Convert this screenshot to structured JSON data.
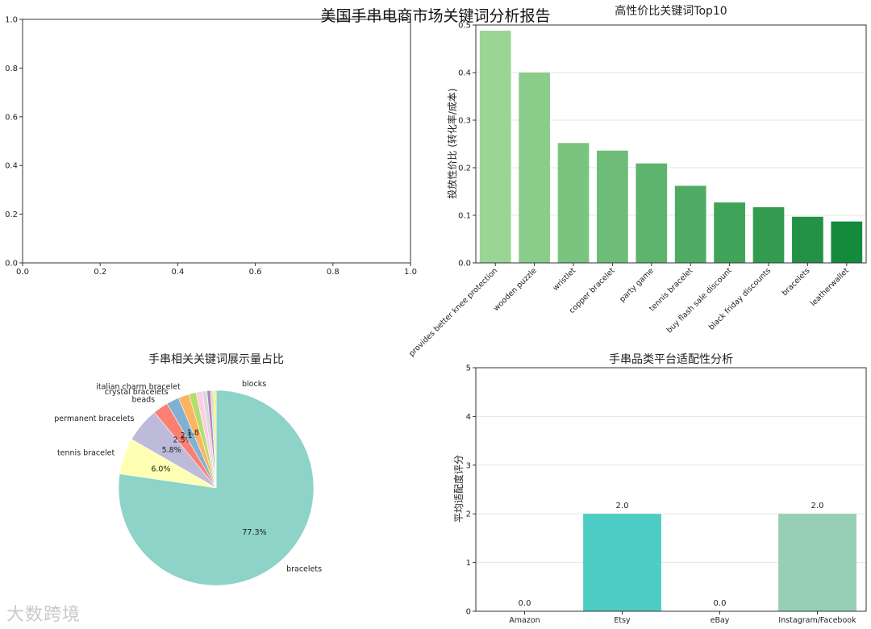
{
  "suptitle": "美国手串电商市场关键词分析报告",
  "watermark": "大数跨境",
  "colors": {
    "axis": "#333333",
    "grid": "#e6e6e6",
    "green_light": "#99d594",
    "green_dark": "#148a3c",
    "platform_colors": [
      "#f4b6b6",
      "#4ecdc4",
      "#cfe8f3",
      "#96cfb4"
    ]
  },
  "chart_data": [
    {
      "id": "empty",
      "type": "scatter",
      "title": "",
      "xlim": [
        0,
        1
      ],
      "ylim": [
        0,
        1
      ],
      "xticks": [
        "0.0",
        "0.2",
        "0.4",
        "0.6",
        "0.8",
        "1.0"
      ],
      "yticks": [
        "0.0",
        "0.2",
        "0.4",
        "0.6",
        "0.8",
        "1.0"
      ],
      "grid": false,
      "series": []
    },
    {
      "id": "top10",
      "type": "bar",
      "title": "高性价比关键词Top10",
      "ylabel": "投放性价比 (转化率/成本)",
      "xlabel": "",
      "ylim": [
        0,
        0.5
      ],
      "yticks": [
        "0.0",
        "0.1",
        "0.2",
        "0.3",
        "0.4",
        "0.5"
      ],
      "grid": true,
      "categories": [
        "provides better knee protection",
        "wooden puzzle",
        "wristlet",
        "copper bracelet",
        "party game",
        "tennis bracelet",
        "buy flash sale discount",
        "black friday discounts",
        "bracelets",
        "leatherwallet"
      ],
      "values": [
        0.488,
        0.4,
        0.252,
        0.236,
        0.209,
        0.162,
        0.127,
        0.117,
        0.097,
        0.087
      ]
    },
    {
      "id": "pie",
      "type": "pie",
      "title": "手串相关关键词展示量占比",
      "slices": [
        {
          "label": "bracelets",
          "value": 77.3,
          "pct": "77.3%",
          "color": "#8dd3c7"
        },
        {
          "label": "tennis bracelet",
          "value": 6.0,
          "pct": "6.0%",
          "color": "#ffffb3"
        },
        {
          "label": "permanent bracelets",
          "value": 5.8,
          "pct": "5.8%",
          "color": "#bebada"
        },
        {
          "label": "beads",
          "value": 2.5,
          "pct": "2.5%",
          "color": "#fb8072"
        },
        {
          "label": "crystal bracelets",
          "value": 2.1,
          "pct": "2.1%",
          "color": "#80b1d3"
        },
        {
          "label": "italian charm bracelet",
          "value": 1.8,
          "pct": "1.8%",
          "color": "#fdb462"
        },
        {
          "label": "",
          "value": 1.2,
          "pct": "",
          "color": "#b3de69"
        },
        {
          "label": "",
          "value": 1.0,
          "pct": "",
          "color": "#fccde5"
        },
        {
          "label": "",
          "value": 0.8,
          "pct": "",
          "color": "#d9d9d9"
        },
        {
          "label": "",
          "value": 0.6,
          "pct": "",
          "color": "#bc80bd"
        },
        {
          "label": "",
          "value": 0.5,
          "pct": "",
          "color": "#ccebc5"
        },
        {
          "label": "",
          "value": 0.4,
          "pct": "",
          "color": "#ffed6f"
        }
      ],
      "overlap_label": "blocks"
    },
    {
      "id": "platform",
      "type": "bar",
      "title": "手串品类平台适配性分析",
      "ylabel": "平均适配度评分",
      "xlabel": "",
      "ylim": [
        0,
        5
      ],
      "yticks": [
        "0",
        "1",
        "2",
        "3",
        "4",
        "5"
      ],
      "grid": true,
      "categories": [
        "Amazon",
        "Etsy",
        "eBay",
        "Instagram/Facebook"
      ],
      "values": [
        0.0,
        2.0,
        0.0,
        2.0
      ],
      "value_labels": [
        "0.0",
        "2.0",
        "0.0",
        "2.0"
      ]
    }
  ]
}
